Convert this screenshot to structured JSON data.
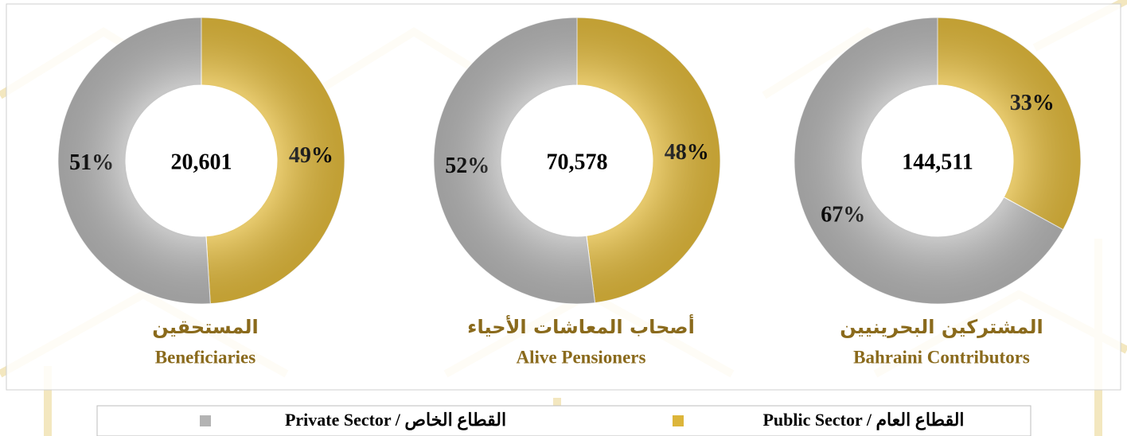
{
  "chart_data": [
    {
      "type": "donut",
      "title_ar": "المستحقين",
      "title_en": "Beneficiaries",
      "total": 20601,
      "total_label": "20,601",
      "values": [
        49,
        51
      ],
      "value_labels": [
        "49%",
        "51%"
      ]
    },
    {
      "type": "donut",
      "title_ar": "أصحاب المعاشات الأحياء",
      "title_en": "Alive Pensioners",
      "total": 70578,
      "total_label": "70,578",
      "values": [
        48,
        52
      ],
      "value_labels": [
        "48%",
        "52%"
      ]
    },
    {
      "type": "donut",
      "title_ar": "المشتركين البحرينيين",
      "title_en": "Bahraini Contributors",
      "total": 144511,
      "total_label": "144,511",
      "values": [
        33,
        67
      ],
      "value_labels": [
        "33%",
        "67%"
      ]
    }
  ],
  "legend": [
    {
      "label": "Public Sector / القطاع العام",
      "color": "#dcb53a"
    },
    {
      "label": "Private Sector / القطاع الخاص",
      "color": "#b3b3b3"
    }
  ]
}
